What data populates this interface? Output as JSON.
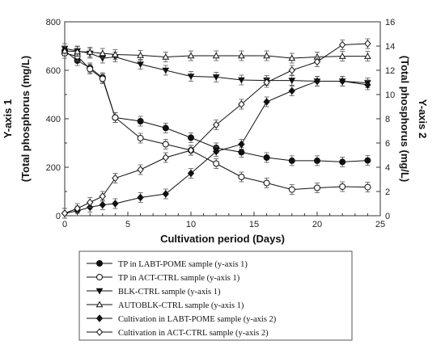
{
  "chart_data": {
    "type": "line",
    "xlabel": "Cultivation period (Days)",
    "y1label": [
      "Y-axis 1",
      "(Total phosphorus (mg/L)"
    ],
    "y2label": [
      "Y-axis 2",
      "(Total phosphorus (mg/L)"
    ],
    "xlim": [
      0,
      25
    ],
    "y1lim": [
      0,
      800
    ],
    "y2lim": [
      0,
      16
    ],
    "xticks": [
      0,
      5,
      10,
      15,
      20,
      25
    ],
    "y1ticks": [
      0,
      200,
      400,
      600,
      800
    ],
    "y2ticks": [
      0,
      2,
      4,
      6,
      8,
      10,
      12,
      14,
      16
    ],
    "legend_position": "bottom",
    "series": [
      {
        "name": "TP in LABT-POME sample (y-axis 1)",
        "axis": "y1",
        "marker": "circle",
        "fill": "filled",
        "x": [
          0,
          1,
          2,
          3,
          4,
          6,
          8,
          10,
          12,
          14,
          16,
          18,
          20,
          22,
          24
        ],
        "y": [
          680,
          640,
          610,
          570,
          405,
          390,
          362,
          322,
          280,
          262,
          240,
          227,
          227,
          222,
          228
        ]
      },
      {
        "name": "TP in ACT-CTRL sample (y-axis 1)",
        "axis": "y1",
        "marker": "circle",
        "fill": "open",
        "x": [
          0,
          1,
          2,
          3,
          4,
          6,
          8,
          10,
          12,
          14,
          16,
          18,
          20,
          22,
          24
        ],
        "y": [
          670,
          658,
          605,
          565,
          405,
          320,
          295,
          270,
          215,
          160,
          135,
          108,
          115,
          120,
          118
        ]
      },
      {
        "name": "BLK-CTRL sample (y-axis 1)",
        "axis": "y1",
        "marker": "triangle-down",
        "fill": "filled",
        "x": [
          0,
          1,
          2,
          3,
          4,
          6,
          8,
          10,
          12,
          14,
          16,
          18,
          20,
          22,
          24
        ],
        "y": [
          690,
          680,
          670,
          650,
          655,
          625,
          600,
          575,
          572,
          560,
          558,
          558,
          555,
          555,
          548
        ]
      },
      {
        "name": "AUTOBLK-CTRL sample (y-axis 1)",
        "axis": "y1",
        "marker": "triangle-up",
        "fill": "open",
        "x": [
          0,
          1,
          2,
          3,
          4,
          6,
          8,
          10,
          12,
          14,
          16,
          18,
          20,
          22,
          24
        ],
        "y": [
          680,
          677,
          675,
          670,
          665,
          662,
          655,
          660,
          660,
          660,
          660,
          650,
          655,
          658,
          658
        ]
      },
      {
        "name": "Cultivation in LABT-POME sample (y-axis 2)",
        "axis": "y2",
        "marker": "diamond",
        "fill": "filled",
        "x": [
          0,
          1,
          2,
          3,
          4,
          6,
          8,
          10,
          12,
          14,
          16,
          18,
          20,
          22,
          24
        ],
        "y": [
          0.2,
          0.4,
          0.7,
          0.9,
          1.0,
          1.5,
          1.8,
          3.5,
          5.3,
          5.9,
          9.4,
          10.3,
          11.1,
          11.1,
          10.8
        ]
      },
      {
        "name": "Cultivation in ACT-CTRL sample (y-axis 2)",
        "axis": "y2",
        "marker": "diamond",
        "fill": "open",
        "x": [
          0,
          1,
          2,
          3,
          4,
          6,
          8,
          10,
          12,
          14,
          16,
          18,
          20,
          22,
          24
        ],
        "y": [
          0.2,
          0.6,
          1.1,
          1.6,
          3.1,
          3.8,
          4.8,
          5.4,
          7.5,
          9.2,
          11.0,
          12.0,
          12.7,
          14.1,
          14.2
        ]
      }
    ]
  }
}
